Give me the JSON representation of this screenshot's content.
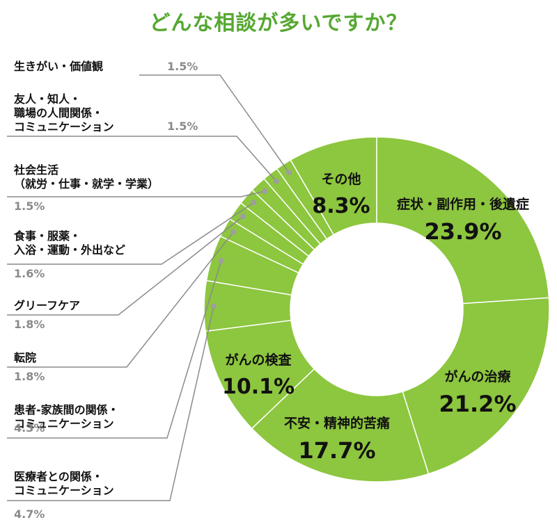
{
  "title": "どんな相談が多いですか？",
  "colors": {
    "slice": "#8dc63f",
    "separator": "#ffffff",
    "title": "#56a832",
    "leader": "#8a8a8a",
    "dot": "#9e9e9e"
  },
  "chart_data": {
    "type": "pie",
    "title": "どんな相談が多いですか？",
    "slices": [
      {
        "label": "症状・副作用・後遺症",
        "value": 23.9,
        "display": "23.9%"
      },
      {
        "label": "がんの治療",
        "value": 21.2,
        "display": "21.2%"
      },
      {
        "label": "不安・精神的苦痛",
        "value": 17.7,
        "display": "17.7%"
      },
      {
        "label": "がんの検査",
        "value": 10.1,
        "display": "10.1%"
      },
      {
        "label": "医療者との関係・\nコミュニケーション",
        "value": 4.7,
        "display": "4.7%"
      },
      {
        "label": "患者-家族間の関係・\nコミュニケーション",
        "value": 4.3,
        "display": "4.3%"
      },
      {
        "label": "転院",
        "value": 1.8,
        "display": "1.8%"
      },
      {
        "label": "グリーフケア",
        "value": 1.8,
        "display": "1.8%"
      },
      {
        "label": "食事・服薬・\n入浴・運動・外出など",
        "value": 1.6,
        "display": "1.6%"
      },
      {
        "label": "社会生活\n（就労・仕事・就学・学業）",
        "value": 1.5,
        "display": "1.5%"
      },
      {
        "label": "友人・知人・\n職場の人間関係・\nコミュニケーション",
        "value": 1.5,
        "display": "1.5%"
      },
      {
        "label": "生きがい・価値観",
        "value": 1.5,
        "display": "1.5%"
      },
      {
        "label": "その他",
        "value": 8.3,
        "display": "8.3%"
      }
    ]
  }
}
